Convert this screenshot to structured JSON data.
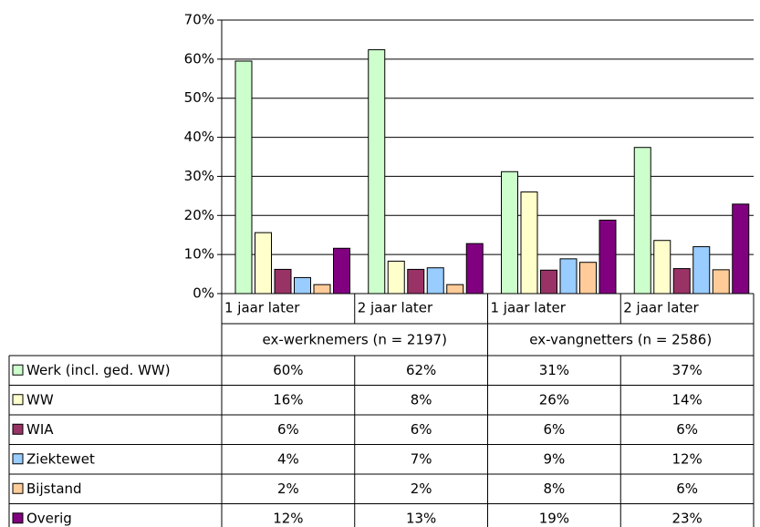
{
  "chart_data": {
    "type": "bar",
    "categories": [
      "1 jaar later",
      "2 jaar later",
      "1 jaar later",
      "2 jaar later"
    ],
    "group_labels": [
      "ex-werknemers (n = 2197)",
      "ex-vangnetters (n = 2586)"
    ],
    "series": [
      {
        "name": "Werk (incl. ged. WW)",
        "color": "#ccffcc",
        "values": [
          59.5,
          62.4,
          31.2,
          37.4
        ],
        "value_labels": [
          "60%",
          "62%",
          "31%",
          "37%"
        ]
      },
      {
        "name": "WW",
        "color": "#ffffcc",
        "values": [
          15.6,
          8.3,
          26.0,
          13.6
        ],
        "value_labels": [
          "16%",
          "8%",
          "26%",
          "14%"
        ]
      },
      {
        "name": "WIA",
        "color": "#993366",
        "values": [
          6.2,
          6.2,
          6.0,
          6.4
        ],
        "value_labels": [
          "6%",
          "6%",
          "6%",
          "6%"
        ]
      },
      {
        "name": "Ziektewet",
        "color": "#99ccff",
        "values": [
          4.1,
          6.6,
          8.9,
          12.0
        ],
        "value_labels": [
          "4%",
          "7%",
          "9%",
          "12%"
        ]
      },
      {
        "name": "Bijstand",
        "color": "#ffcc99",
        "values": [
          2.3,
          2.3,
          8.0,
          6.1
        ],
        "value_labels": [
          "2%",
          "2%",
          "8%",
          "6%"
        ]
      },
      {
        "name": "Overig",
        "color": "#800080",
        "values": [
          11.6,
          12.8,
          18.8,
          22.9
        ],
        "value_labels": [
          "12%",
          "13%",
          "19%",
          "23%"
        ]
      }
    ],
    "ylim": [
      0,
      70
    ],
    "yticks": [
      {
        "value": 0,
        "label": "0%"
      },
      {
        "value": 10,
        "label": "10%"
      },
      {
        "value": 20,
        "label": "20%"
      },
      {
        "value": 30,
        "label": "30%"
      },
      {
        "value": 40,
        "label": "40%"
      },
      {
        "value": 50,
        "label": "50%"
      },
      {
        "value": 60,
        "label": "60%"
      },
      {
        "value": 70,
        "label": "70%"
      }
    ],
    "grid": true
  }
}
